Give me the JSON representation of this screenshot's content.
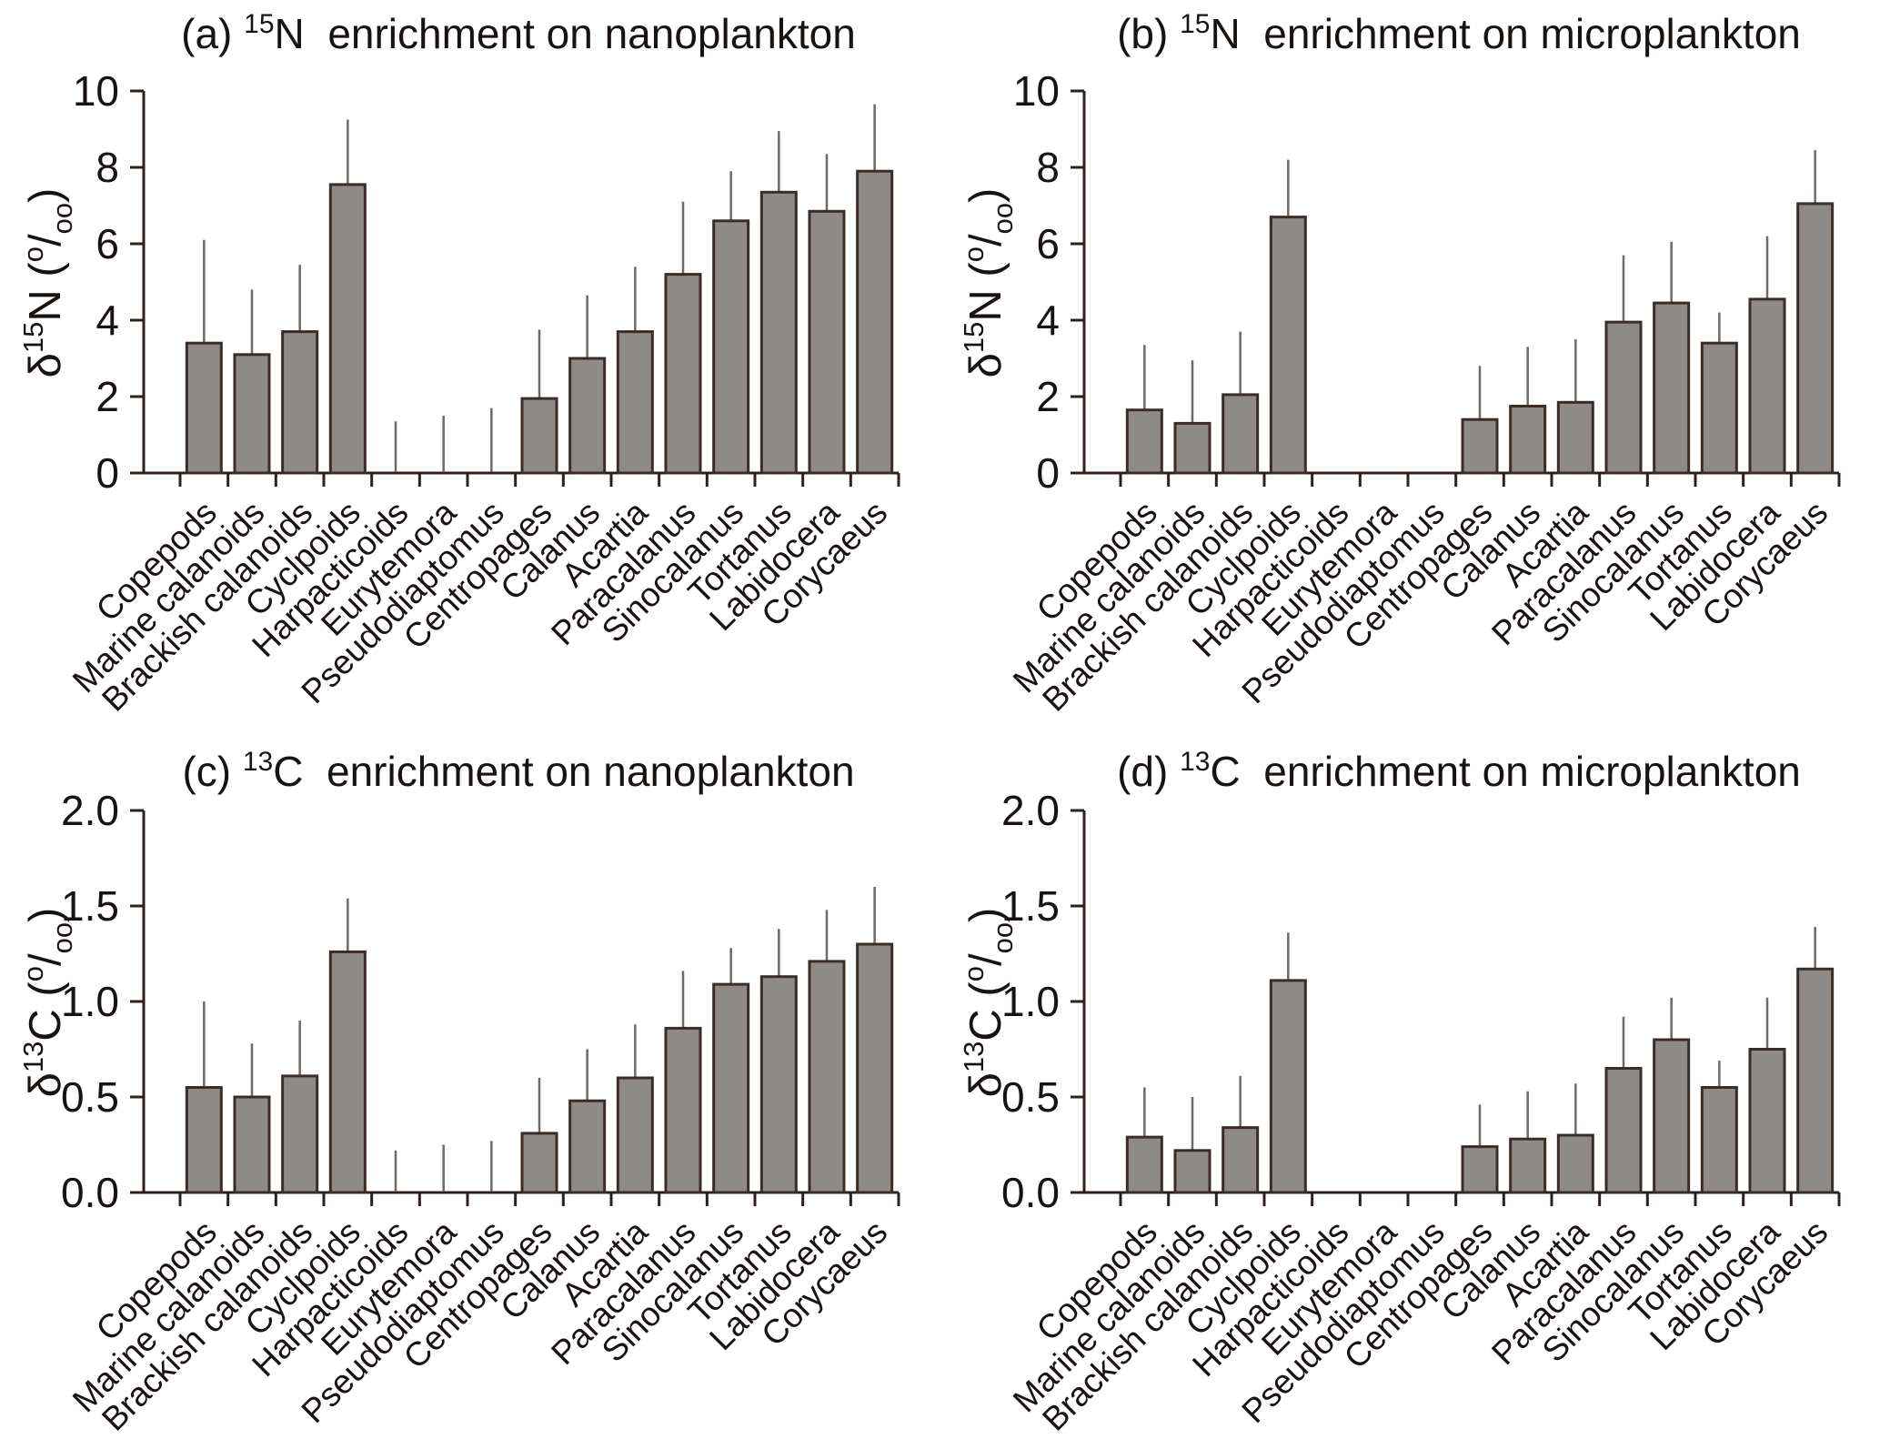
{
  "page": {
    "background": "#ffffff"
  },
  "styles": {
    "bar_fill": "#8E8A8A",
    "bar_stroke": "#3A2D28",
    "error_color": "#6E6866",
    "axis_color": "#2C211D",
    "text_color": "#181311"
  },
  "chart_data": [
    {
      "id": "a",
      "type": "bar",
      "title": "(a) 15N enrichment on nanoplankton",
      "title_parts": {
        "prefix": "(a) ",
        "sup": "15",
        "mid": "N  ",
        "rest": "enrichment on nanoplankton"
      },
      "ylabel": "d15N (o/oo)",
      "ylabel_parts": {
        "prefix": "δ",
        "sup": "15",
        "mid": "N (",
        "sup2": "o",
        "slash": "/",
        "sub": "oo",
        "suffix": ")"
      },
      "ylim": [
        0,
        10
      ],
      "yticks": [
        0,
        2,
        4,
        6,
        8,
        10
      ],
      "ytick_labels": [
        "0",
        "2",
        "4",
        "6",
        "8",
        "10"
      ],
      "grid": false,
      "legend": null,
      "categories": [
        "Copepods",
        "Marine calanoids",
        "Brackish calanoids",
        "Cyclpoids",
        "Harpacticoids",
        "Eurytemora",
        "Pseudodiaptomus",
        "Centropages",
        "Calanus",
        "Acartia",
        "Paracalanus",
        "Sinocalanus",
        "Tortanus",
        "Labidocera",
        "Corycaeus"
      ],
      "values": [
        3.4,
        3.1,
        3.7,
        7.55,
        0,
        0,
        0,
        1.95,
        3.0,
        3.7,
        5.2,
        6.6,
        7.35,
        6.85,
        7.9
      ],
      "error_tops": [
        6.1,
        4.8,
        5.45,
        9.25,
        1.35,
        1.5,
        1.7,
        3.75,
        4.65,
        5.4,
        7.1,
        7.9,
        8.95,
        8.35,
        9.65
      ]
    },
    {
      "id": "b",
      "type": "bar",
      "title": "(b) 15N enrichment on microplankton",
      "title_parts": {
        "prefix": "(b) ",
        "sup": "15",
        "mid": "N  ",
        "rest": "enrichment on microplankton"
      },
      "ylabel": "d15N (o/oo)",
      "ylabel_parts": {
        "prefix": "δ",
        "sup": "15",
        "mid": "N (",
        "sup2": "o",
        "slash": "/",
        "sub": "oo",
        "suffix": ")"
      },
      "ylim": [
        0,
        10
      ],
      "yticks": [
        0,
        2,
        4,
        6,
        8,
        10
      ],
      "ytick_labels": [
        "0",
        "2",
        "4",
        "6",
        "8",
        "10"
      ],
      "grid": false,
      "legend": null,
      "categories": [
        "Copepods",
        "Marine calanoids",
        "Brackish calanoids",
        "Cyclpoids",
        "Harpacticoids",
        "Eurytemora",
        "Pseudodiaptomus",
        "Centropages",
        "Calanus",
        "Acartia",
        "Paracalanus",
        "Sinocalanus",
        "Tortanus",
        "Labidocera",
        "Corycaeus"
      ],
      "values": [
        1.65,
        1.3,
        2.05,
        6.7,
        0,
        0,
        0,
        1.4,
        1.75,
        1.85,
        3.95,
        4.45,
        3.4,
        4.55,
        7.05
      ],
      "error_tops": [
        3.35,
        2.95,
        3.7,
        8.2,
        0,
        0,
        0,
        2.8,
        3.3,
        3.5,
        5.7,
        6.05,
        4.2,
        6.2,
        8.45
      ]
    },
    {
      "id": "c",
      "type": "bar",
      "title": "(c) 13C enrichment on nanoplankton",
      "title_parts": {
        "prefix": "(c) ",
        "sup": "13",
        "mid": "C  ",
        "rest": "enrichment on nanoplankton"
      },
      "ylabel": "d13C (o/oo)",
      "ylabel_parts": {
        "prefix": "δ",
        "sup": "13",
        "mid": "C (",
        "sup2": "o",
        "slash": "/",
        "sub": "oo",
        "suffix": ")"
      },
      "ylim": [
        0,
        2.0
      ],
      "yticks": [
        0,
        0.5,
        1.0,
        1.5,
        2.0
      ],
      "ytick_labels": [
        "0.0",
        "0.5",
        "1.0",
        "1.5",
        "2.0"
      ],
      "grid": false,
      "legend": null,
      "categories": [
        "Copepods",
        "Marine calanoids",
        "Brackish calanoids",
        "Cyclpoids",
        "Harpacticoids",
        "Eurytemora",
        "Pseudodiaptomus",
        "Centropages",
        "Calanus",
        "Acartia",
        "Paracalanus",
        "Sinocalanus",
        "Tortanus",
        "Labidocera",
        "Corycaeus"
      ],
      "values": [
        0.55,
        0.5,
        0.61,
        1.26,
        0,
        0,
        0,
        0.31,
        0.48,
        0.6,
        0.86,
        1.09,
        1.13,
        1.21,
        1.3
      ],
      "error_tops": [
        1.0,
        0.78,
        0.9,
        1.54,
        0.22,
        0.25,
        0.27,
        0.6,
        0.75,
        0.88,
        1.16,
        1.28,
        1.38,
        1.48,
        1.6
      ]
    },
    {
      "id": "d",
      "type": "bar",
      "title": "(d) 13C enrichment on microplankton",
      "title_parts": {
        "prefix": "(d) ",
        "sup": "13",
        "mid": "C  ",
        "rest": "enrichment on microplankton"
      },
      "ylabel": "d13C (o/oo)",
      "ylabel_parts": {
        "prefix": "δ",
        "sup": "13",
        "mid": "C (",
        "sup2": "o",
        "slash": "/",
        "sub": "oo",
        "suffix": ")"
      },
      "ylim": [
        0,
        2.0
      ],
      "yticks": [
        0,
        0.5,
        1.0,
        1.5,
        2.0
      ],
      "ytick_labels": [
        "0.0",
        "0.5",
        "1.0",
        "1.5",
        "2.0"
      ],
      "grid": false,
      "legend": null,
      "categories": [
        "Copepods",
        "Marine calanoids",
        "Brackish calanoids",
        "Cyclpoids",
        "Harpacticoids",
        "Eurytemora",
        "Pseudodiaptomus",
        "Centropages",
        "Calanus",
        "Acartia",
        "Paracalanus",
        "Sinocalanus",
        "Tortanus",
        "Labidocera",
        "Corycaeus"
      ],
      "values": [
        0.29,
        0.22,
        0.34,
        1.11,
        0,
        0,
        0,
        0.24,
        0.28,
        0.3,
        0.65,
        0.8,
        0.55,
        0.75,
        1.17
      ],
      "error_tops": [
        0.55,
        0.5,
        0.61,
        1.36,
        0,
        0,
        0,
        0.46,
        0.53,
        0.57,
        0.92,
        1.02,
        0.69,
        1.02,
        1.39
      ]
    }
  ]
}
